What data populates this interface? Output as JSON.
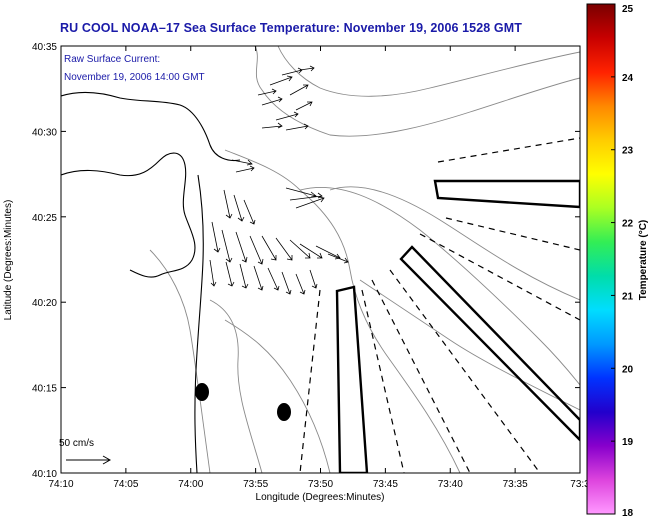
{
  "title": "RU COOL  NOAA–17  Sea Surface Temperature:  November 19, 2006 1528 GMT",
  "annotation": {
    "line1": "Raw Surface Current:",
    "line2": "November 19, 2006 14:00 GMT"
  },
  "scale_label": "50 cm/s",
  "x_axis": {
    "label": "Longitude (Degrees:Minutes)",
    "ticks": [
      "74:10",
      "74:05",
      "74:00",
      "73:55",
      "73:50",
      "73:45",
      "73:40",
      "73:35",
      "73:3"
    ]
  },
  "y_axis": {
    "label": "Latitude (Degrees:Minutes)",
    "ticks": [
      "40:35",
      "40:30",
      "40:25",
      "40:20",
      "40:15",
      "40:10"
    ]
  },
  "colorbar": {
    "label": "Temperature (°C)",
    "ticks": [
      "25",
      "24",
      "23",
      "22",
      "21",
      "20",
      "19",
      "18"
    ],
    "colors": [
      "#7a0000",
      "#c80000",
      "#ff2200",
      "#ff8800",
      "#ffcc00",
      "#ffff00",
      "#aaff22",
      "#33ee55",
      "#00ddaa",
      "#00ddff",
      "#0099ff",
      "#0033ff",
      "#2200cc",
      "#8800cc",
      "#dd44dd",
      "#ff99ff"
    ]
  }
}
